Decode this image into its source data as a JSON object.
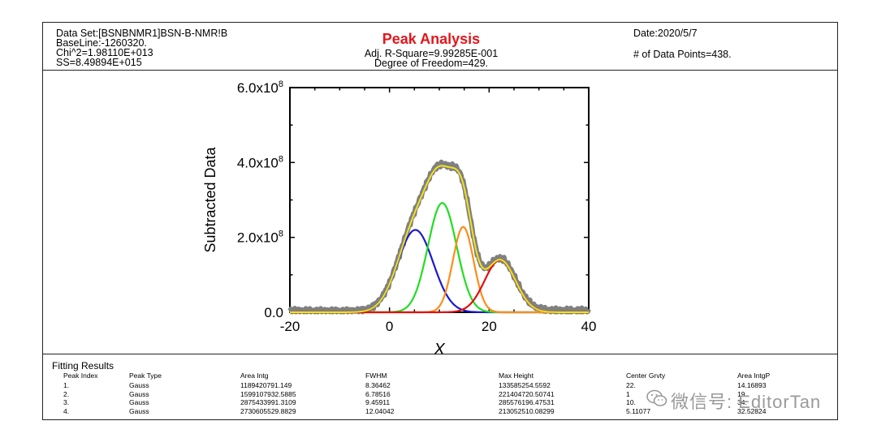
{
  "header": {
    "dataset": "Data Set:[BSNBNMR1]BSN-B-NMR!B",
    "baseline": "BaseLine:-1260320.",
    "chi2": "Chi^2=1.98110E+013",
    "ss": "SS=8.49894E+015",
    "title": "Peak Analysis",
    "adj_r2": "Adj. R-Square=9.99285E-001",
    "dof": "Degree of Freedom=429.",
    "date": "Date:2020/5/7",
    "points": "# of Data Points=438."
  },
  "chart_data": {
    "type": "line",
    "title": "",
    "xlabel": "X",
    "ylabel": "Subtracted Data",
    "xlim": [
      -20,
      40
    ],
    "ylim": [
      0,
      600000000
    ],
    "xticks": [
      -20,
      0,
      20,
      40
    ],
    "yticks": [
      {
        "value": 0,
        "label": "0.0"
      },
      {
        "value": 200000000,
        "label": "2.0x10",
        "exp": "8"
      },
      {
        "value": 400000000,
        "label": "4.0x10",
        "exp": "8"
      },
      {
        "value": 600000000,
        "label": "6.0x10",
        "exp": "8"
      }
    ],
    "grid": false,
    "legend": "none",
    "peaks": [
      {
        "center": 5.2,
        "fwhm": 8.36462,
        "height": 220000000,
        "color": "#1a1acc"
      },
      {
        "center": 10.6,
        "fwhm": 6.78516,
        "height": 292000000,
        "color": "#22dd22"
      },
      {
        "center": 14.8,
        "fwhm": 4.9,
        "height": 228000000,
        "color": "#ff8c1a"
      },
      {
        "center": 22.2,
        "fwhm": 7.3,
        "height": 140000000,
        "color": "#e01010"
      }
    ],
    "data_color": "#808080",
    "fit_color": "#f2e21a"
  },
  "fitting": {
    "title": "Fitting Results",
    "headers": [
      "Peak Index",
      "Peak Type",
      "Area Intg",
      "FWHM",
      "Max Height",
      "Center Grvty",
      "Area IntgP"
    ],
    "rows": [
      [
        "1.",
        "Gauss",
        "1189420791.149",
        "8.36462",
        "133585254.5592",
        "22.",
        "14.16893"
      ],
      [
        "2.",
        "Gauss",
        "1599107932.5885",
        "6.78516",
        "221404720.50741",
        "1",
        "19."
      ],
      [
        "3.",
        "Gauss",
        "2875433991.3109",
        "9.45911",
        "285576196.47531",
        "10.",
        "34."
      ],
      [
        "4.",
        "Gauss",
        "2730605529.8829",
        "12.04042",
        "213052510.08299",
        "5.11077",
        "32.52824"
      ]
    ]
  },
  "watermark": {
    "text": "微信号: EditorTan",
    "icon": "wechat-icon"
  }
}
